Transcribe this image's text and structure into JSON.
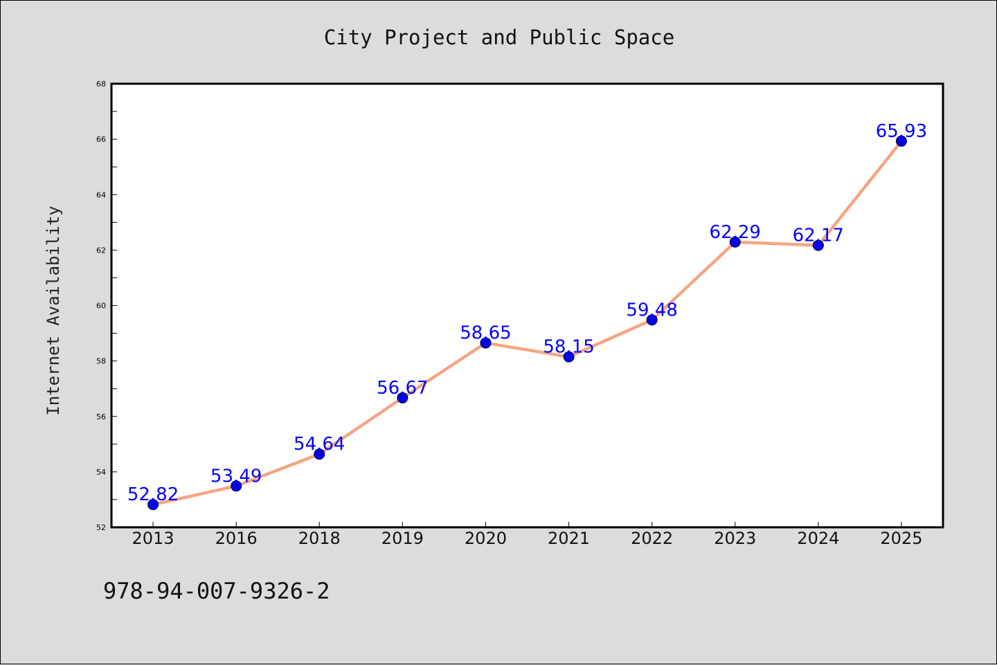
{
  "chart_data": {
    "type": "line",
    "title": "City Project and Public Space",
    "xlabel": "",
    "ylabel": "Internet Availability",
    "categories": [
      "2013",
      "2016",
      "2018",
      "2019",
      "2020",
      "2021",
      "2022",
      "2023",
      "2024",
      "2025"
    ],
    "series": [
      {
        "values": [
          52.82,
          53.49,
          54.64,
          56.67,
          58.65,
          58.15,
          59.48,
          62.29,
          62.17,
          65.93
        ],
        "line_color": "#f4a582",
        "marker_color": "#0000ee",
        "label_color": "#0000ff"
      }
    ],
    "ylim": [
      52,
      68
    ],
    "yticks": [
      52,
      54,
      56,
      58,
      60,
      62,
      64,
      66,
      68
    ],
    "grid": false,
    "legend": "none",
    "data_labels": true
  },
  "annotation": {
    "isbn": "978-94-007-9326-2"
  },
  "colors": {
    "background": "#dcdcdc",
    "plot_background": "#ffffff"
  }
}
